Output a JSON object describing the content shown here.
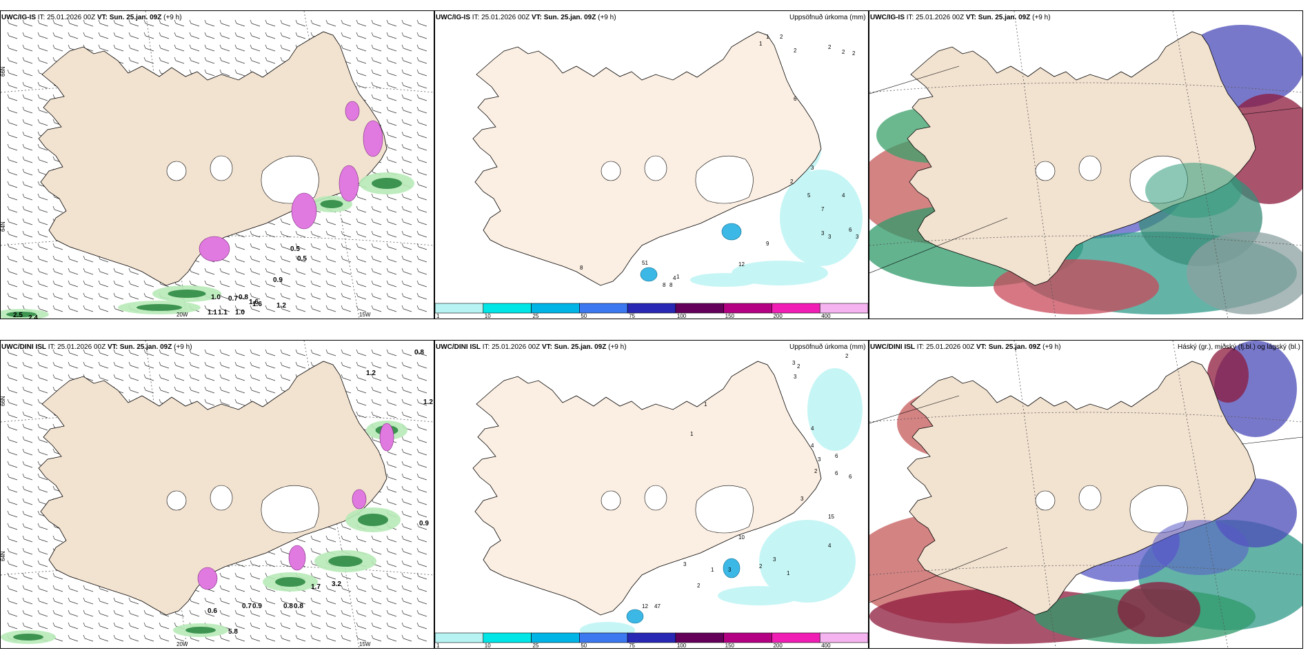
{
  "rows": [
    {
      "panels": [
        {
          "model": "UWC/IG-IS",
          "it_label": "IT:",
          "it": "25.01.2026 00Z",
          "vt_label": "VT:",
          "vt": "Sun. 25.jan. 09Z",
          "lead": "(+9 h)",
          "right_title": ""
        },
        {
          "model": "UWC/IG-IS",
          "it_label": "IT:",
          "it": "25.01.2026 00Z",
          "vt_label": "VT:",
          "vt": "Sun. 25.jan. 09Z",
          "lead": "(+9 h)",
          "right_title": "Uppsöfnuð úrkoma (mm)"
        },
        {
          "model": "UWC/IG-IS",
          "it_label": "IT:",
          "it": "25.01.2026 00Z",
          "vt_label": "VT:",
          "vt": "Sun. 25.jan. 09Z",
          "lead": "(+9 h)",
          "right_title": "Háský (gr.), miðský (fj.bl.) og lágský (bl.)"
        }
      ]
    },
    {
      "panels": [
        {
          "model": "UWC/DINI ISL",
          "it_label": "IT:",
          "it": "25.01.2026 00Z",
          "vt_label": "VT:",
          "vt": "Sun. 25.jan. 09Z",
          "lead": "(+9 h)",
          "right_title": ""
        },
        {
          "model": "UWC/DINI ISL",
          "it_label": "IT:",
          "it": "25.01.2026 00Z",
          "vt_label": "VT:",
          "vt": "Sun. 25.jan. 09Z",
          "lead": "(+9 h)",
          "right_title": "Uppsöfnuð úrkoma (mm)"
        },
        {
          "model": "UWC/DINI ISL",
          "it_label": "IT:",
          "it": "25.01.2026 00Z",
          "vt_label": "VT:",
          "vt": "Sun. 25.jan. 09Z",
          "lead": "(+9 h)",
          "right_title": "Háský (gr.), miðský (fj.bl.) og lágský (bl.)"
        }
      ]
    }
  ],
  "axis_labels": {
    "lon_20w": "20W",
    "lon_15w": "15W",
    "lat_66n": "66N",
    "lat_64n": "64N"
  },
  "precip_colorbar": {
    "ticks": [
      "1",
      "10",
      "25",
      "50",
      "75",
      "100",
      "150",
      "200",
      "400"
    ],
    "colors": [
      "#b8f3f3",
      "#00e6e6",
      "#00b4e6",
      "#3c78f0",
      "#2828b4",
      "#64005a",
      "#b40082",
      "#f01eb4",
      "#f5b4f0"
    ]
  },
  "wind_labels_top": [
    "0.5",
    "0.5",
    "0.9",
    "1.0",
    "0.8",
    "1.6",
    "1.2",
    "1.1",
    "1.1",
    "1.0",
    "2.5",
    "2.4",
    "1.6",
    "0.7"
  ],
  "wind_labels_bottom": [
    "0.8",
    "1.2",
    "1.2",
    "0.9",
    "0.8",
    "0.8",
    "0.9",
    "0.7",
    "1.7",
    "3.2",
    "5.8",
    "0.6"
  ],
  "precip_labels_top": [
    "1",
    "2",
    "2",
    "2",
    "2",
    "2",
    "1",
    "6",
    "3",
    "5",
    "7",
    "4",
    "2",
    "6",
    "3",
    "3",
    "3",
    "9",
    "12",
    "51",
    "4",
    "8",
    "1",
    "8",
    "8"
  ],
  "precip_labels_bottom": [
    "2",
    "2",
    "3",
    "3",
    "4",
    "1",
    "1",
    "4",
    "6",
    "3",
    "2",
    "6",
    "6",
    "3",
    "15",
    "10",
    "4",
    "3",
    "2",
    "3",
    "1",
    "12",
    "47",
    "3",
    "2",
    "1"
  ],
  "colors": {
    "land": "#f2e2d0",
    "land_alt": "#e9d7c4",
    "sea": "#ffffff",
    "coast": "#000000"
  }
}
